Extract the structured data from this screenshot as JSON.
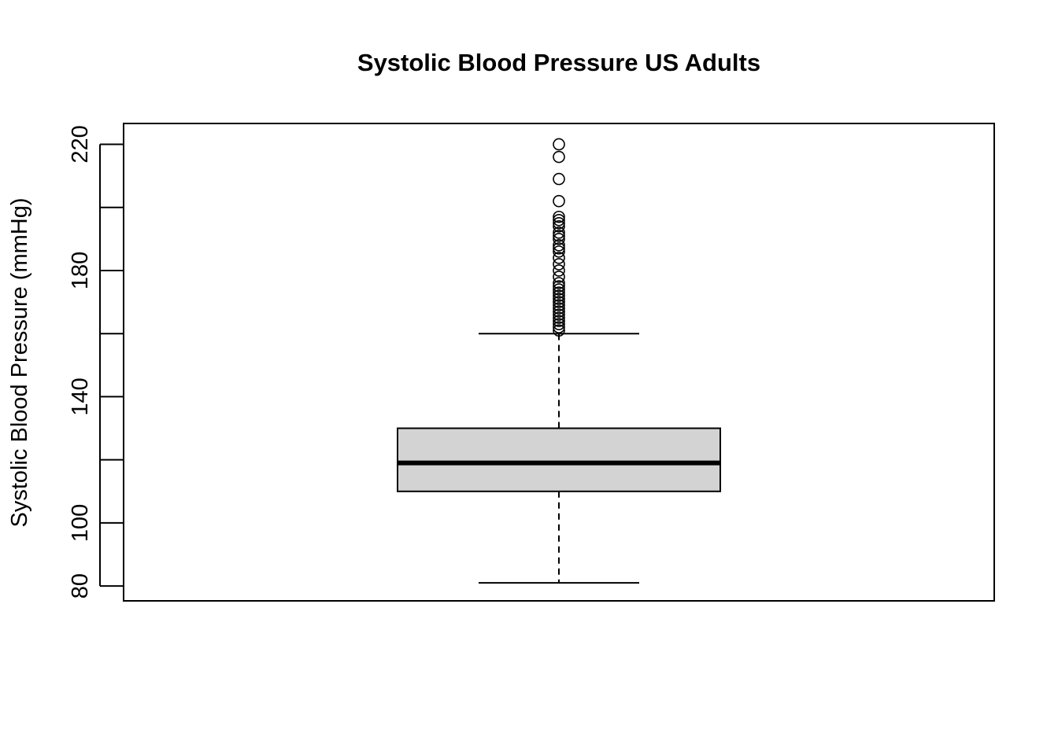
{
  "chart_data": {
    "type": "boxplot",
    "title": "Systolic Blood Pressure US Adults",
    "xlabel": "",
    "ylabel": "Systolic Blood Pressure (mmHg)",
    "ylim": [
      75.3,
      226.6
    ],
    "yticks": [
      80,
      100,
      120,
      140,
      160,
      180,
      200,
      220
    ],
    "ytick_labels": [
      "80",
      "100",
      "",
      "140",
      "",
      "180",
      "",
      "220"
    ],
    "box": {
      "whisker_low": 81,
      "q1": 110,
      "median": 119,
      "q3": 130,
      "whisker_high": 160
    },
    "outliers": [
      161,
      162,
      163,
      164,
      165,
      166,
      167,
      168,
      169,
      170,
      171,
      172,
      173,
      174,
      175,
      176,
      178,
      180,
      182,
      184,
      186,
      187,
      188,
      190,
      191,
      192,
      194,
      195,
      196,
      197,
      202,
      209,
      216,
      220
    ],
    "box_fill": "#d3d3d3",
    "line_color": "#000000",
    "grid": false
  }
}
